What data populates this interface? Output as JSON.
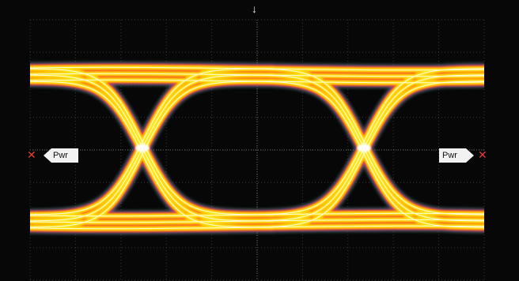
{
  "display": {
    "background": "#070707",
    "grid_color": "#3a3a3a",
    "horizontal_divisions": 10,
    "vertical_divisions": 8,
    "persistence_palette": [
      "#ffffff",
      "#ffe81a",
      "#ffb400",
      "#ff3a2a",
      "#b53cb6",
      "#2e9e5b"
    ]
  },
  "markers": {
    "left_label": "Pwr",
    "right_label": "Pwr",
    "color": "#e43c3c"
  },
  "icons": {
    "trigger": "trigger-position-arrow-icon",
    "marker": "level-marker-arrow-icon"
  }
}
